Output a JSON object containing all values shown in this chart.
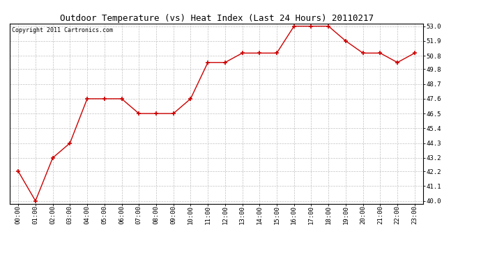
{
  "title": "Outdoor Temperature (vs) Heat Index (Last 24 Hours) 20110217",
  "copyright_text": "Copyright 2011 Cartronics.com",
  "x_labels": [
    "00:00",
    "01:00",
    "02:00",
    "03:00",
    "04:00",
    "05:00",
    "06:00",
    "07:00",
    "08:00",
    "09:00",
    "10:00",
    "11:00",
    "12:00",
    "13:00",
    "14:00",
    "15:00",
    "16:00",
    "17:00",
    "18:00",
    "19:00",
    "20:00",
    "21:00",
    "22:00",
    "23:00"
  ],
  "y_values": [
    42.2,
    40.0,
    43.2,
    44.3,
    47.6,
    47.6,
    47.6,
    46.5,
    46.5,
    46.5,
    47.6,
    50.3,
    50.3,
    51.0,
    51.0,
    51.0,
    53.0,
    53.0,
    53.0,
    51.9,
    51.0,
    51.0,
    50.3,
    51.0
  ],
  "y_min": 40.0,
  "y_max": 53.0,
  "y_ticks": [
    40.0,
    41.1,
    42.2,
    43.2,
    44.3,
    45.4,
    46.5,
    47.6,
    48.7,
    49.8,
    50.8,
    51.9,
    53.0
  ],
  "line_color": "#cc0000",
  "marker": "+",
  "marker_size": 5,
  "marker_edge_width": 1.2,
  "line_width": 1.0,
  "bg_color": "#ffffff",
  "plot_bg_color": "#ffffff",
  "grid_color": "#c0c0c0",
  "title_fontsize": 9,
  "tick_fontsize": 6.5,
  "copyright_fontsize": 6
}
